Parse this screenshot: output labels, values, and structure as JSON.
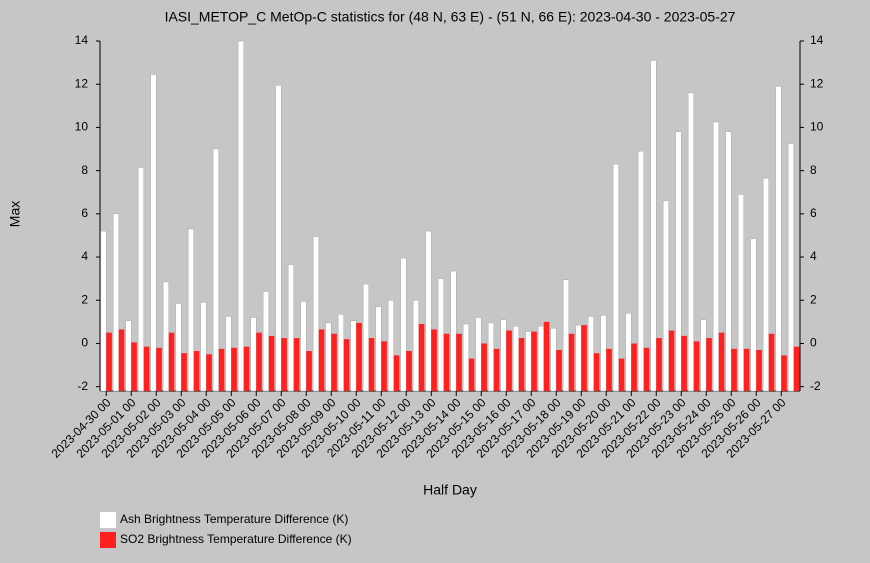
{
  "chart_data": {
    "type": "bar",
    "title": "IASI_METOP_C MetOp-C statistics for (48 N, 63 E) - (51 N, 66 E): 2023-04-30 - 2023-05-27",
    "x_label": "Half Day",
    "y_label": "Max",
    "categories": [
      "2023-04-30 00",
      null,
      "2023-05-01 00",
      null,
      "2023-05-02 00",
      null,
      "2023-05-03 00",
      null,
      "2023-05-04 00",
      null,
      "2023-05-05 00",
      null,
      "2023-05-06 00",
      null,
      "2023-05-07 00",
      null,
      "2023-05-08 00",
      null,
      "2023-05-09 00",
      null,
      "2023-05-10 00",
      null,
      "2023-05-11 00",
      null,
      "2023-05-12 00",
      null,
      "2023-05-13 00",
      null,
      "2023-05-14 00",
      null,
      "2023-05-15 00",
      null,
      "2023-05-16 00",
      null,
      "2023-05-17 00",
      null,
      "2023-05-18 00",
      null,
      "2023-05-19 00",
      null,
      "2023-05-20 00",
      null,
      "2023-05-21 00",
      null,
      "2023-05-22 00",
      null,
      "2023-05-23 00",
      null,
      "2023-05-24 00",
      null,
      "2023-05-25 00",
      null,
      "2023-05-26 00",
      null,
      "2023-05-27 00",
      null
    ],
    "series": [
      {
        "name": "Ash Brightness Temperature Difference (K)",
        "color": "#ffffff",
        "values": [
          5.2,
          6.0,
          1.05,
          8.15,
          12.45,
          2.85,
          1.85,
          5.3,
          1.9,
          9.0,
          1.25,
          14.0,
          1.2,
          2.4,
          11.95,
          3.65,
          1.95,
          4.95,
          0.95,
          1.35,
          1.05,
          2.75,
          1.7,
          2.0,
          3.95,
          2.0,
          5.2,
          3.0,
          3.35,
          0.9,
          1.2,
          0.95,
          1.1,
          0.8,
          0.55,
          0.8,
          0.7,
          2.95,
          0.85,
          1.25,
          1.3,
          8.3,
          1.4,
          8.9,
          13.1,
          6.6,
          9.8,
          11.6,
          1.1,
          10.25,
          9.8,
          6.9,
          4.85,
          7.65,
          11.9,
          9.25
        ]
      },
      {
        "name": "SO2 Brightness Temperature Difference (K)",
        "color": "#ff2020",
        "values": [
          0.5,
          0.65,
          0.05,
          -0.15,
          -0.2,
          0.5,
          -0.45,
          -0.35,
          -0.5,
          -0.25,
          -0.2,
          -0.15,
          0.5,
          0.35,
          0.25,
          0.25,
          -0.35,
          0.65,
          0.45,
          0.2,
          0.95,
          0.25,
          0.1,
          -0.55,
          -0.35,
          0.9,
          0.65,
          0.45,
          0.45,
          -0.7,
          0.0,
          -0.25,
          0.6,
          0.25,
          0.55,
          1.0,
          -0.3,
          0.45,
          0.85,
          -0.45,
          -0.25,
          -0.7,
          0.0,
          -0.2,
          0.25,
          0.6,
          0.35,
          0.1,
          0.25,
          0.5,
          -0.25,
          -0.25,
          -0.3,
          0.45,
          -0.55,
          -0.15
        ]
      }
    ],
    "ylim": [
      -2.2,
      14
    ],
    "yticks": [
      -2,
      0,
      2,
      4,
      6,
      8,
      10,
      12,
      14
    ]
  }
}
